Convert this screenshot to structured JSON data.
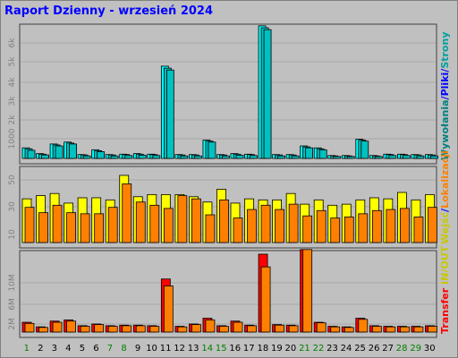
{
  "colors": {
    "hits": "#00ffff",
    "files": "#00c0c0",
    "pages": "#00c0c0",
    "sites": "#ff8000",
    "visits": "#ffff00",
    "kbytes": "#ff0000",
    "kbytes_out": "#ff8000",
    "weekend_day": "#008000",
    "weekday_day": "#000000"
  },
  "chart_data": {
    "type": "bar",
    "title": "Raport Dzienny -  wrzesień 2024",
    "categories": [
      "1",
      "2",
      "3",
      "4",
      "5",
      "6",
      "7",
      "8",
      "9",
      "10",
      "11",
      "12",
      "13",
      "14",
      "15",
      "16",
      "17",
      "18",
      "19",
      "20",
      "21",
      "22",
      "23",
      "24",
      "25",
      "26",
      "27",
      "28",
      "29",
      "30"
    ],
    "weekend_days": [
      "1",
      "7",
      "8",
      "14",
      "15",
      "21",
      "22",
      "28",
      "29"
    ],
    "panels": [
      {
        "name": "requests",
        "yticks": [
          "1000",
          "2k",
          "3k",
          "4k",
          "5k",
          "6k"
        ],
        "ylim": [
          0,
          6800
        ],
        "legend": [
          {
            "text": "Wywołania",
            "color": "#008080"
          },
          {
            "text": "/",
            "color": "#0000ff"
          },
          {
            "text": "Pliki",
            "color": "#0000ff"
          },
          {
            "text": "/",
            "color": "#0000ff"
          },
          {
            "text": "Strony",
            "color": "#00a0a0"
          }
        ],
        "series": [
          {
            "name": "Wywołania",
            "values": [
              550,
              250,
              750,
              850,
              200,
              450,
              200,
              220,
              250,
              220,
              4800,
              200,
              200,
              950,
              200,
              250,
              220,
              6900,
              200,
              200,
              650,
              550,
              150,
              150,
              1000,
              150,
              220,
              220,
              200,
              200
            ]
          },
          {
            "name": "Pliki",
            "values": [
              500,
              220,
              700,
              800,
              180,
              400,
              180,
              200,
              220,
              200,
              4700,
              180,
              180,
              900,
              180,
              220,
              200,
              6800,
              180,
              180,
              600,
              500,
              130,
              130,
              950,
              130,
              200,
              200,
              180,
              180
            ]
          },
          {
            "name": "Strony",
            "values": [
              420,
              180,
              650,
              750,
              130,
              350,
              130,
              150,
              170,
              150,
              4600,
              130,
              130,
              850,
              130,
              170,
              150,
              6700,
              130,
              130,
              550,
              450,
              100,
              100,
              900,
              100,
              150,
              150,
              130,
              130
            ]
          }
        ]
      },
      {
        "name": "visitors",
        "yticks": [
          "10",
          "30",
          "50"
        ],
        "ylim": [
          0,
          68
        ],
        "legend": [
          {
            "text": "Wejść",
            "color": "#c8c800"
          },
          {
            "text": "/",
            "color": "#0000ff"
          },
          {
            "text": "Lokalizacji",
            "color": "#ff8000"
          }
        ],
        "series": [
          {
            "name": "Wejść",
            "values": [
              41,
              44,
              46,
              37,
              42,
              42,
              40,
              63,
              43,
              45,
              45,
              45,
              43,
              38,
              50,
              37,
              41,
              40,
              40,
              46,
              36,
              40,
              35,
              36,
              40,
              42,
              41,
              47,
              40,
              45
            ]
          },
          {
            "name": "Lokalizacji",
            "values": [
              33,
              28,
              35,
              28,
              27,
              27,
              33,
              55,
              38,
              35,
              32,
              44,
              41,
              26,
              40,
              23,
              31,
              35,
              31,
              36,
              25,
              30,
              23,
              24,
              27,
              30,
              31,
              32,
              24,
              33
            ]
          }
        ]
      },
      {
        "name": "transfer",
        "yticks": [
          "2M",
          "6M",
          "10M"
        ],
        "ylim": [
          0,
          13500000
        ],
        "legend": [
          {
            "text": "Transfer",
            "color": "#ff0000"
          },
          {
            "text": "IN",
            "color": "#c8c800"
          },
          {
            "text": "/",
            "color": "#c8c800"
          },
          {
            "text": "OUT",
            "color": "#c8c800"
          }
        ],
        "series": [
          {
            "name": "Transfer",
            "values": [
              1700000,
              900000,
              1900000,
              2100000,
              1100000,
              1400000,
              1100000,
              1200000,
              1200000,
              1100000,
              9200000,
              1000000,
              1400000,
              2400000,
              1100000,
              1900000,
              1200000,
              13500000,
              1300000,
              1200000,
              14300000,
              1700000,
              1000000,
              900000,
              2400000,
              1100000,
              1000000,
              1000000,
              1000000,
              1100000
            ]
          },
          {
            "name": "OUT",
            "values": [
              1500000,
              800000,
              1700000,
              1900000,
              1000000,
              1300000,
              1000000,
              1100000,
              1100000,
              1000000,
              8000000,
              900000,
              1300000,
              2100000,
              1000000,
              1700000,
              1100000,
              11300000,
              1200000,
              1100000,
              14300000,
              1600000,
              900000,
              800000,
              2200000,
              1000000,
              900000,
              900000,
              900000,
              1000000
            ]
          }
        ]
      }
    ]
  }
}
